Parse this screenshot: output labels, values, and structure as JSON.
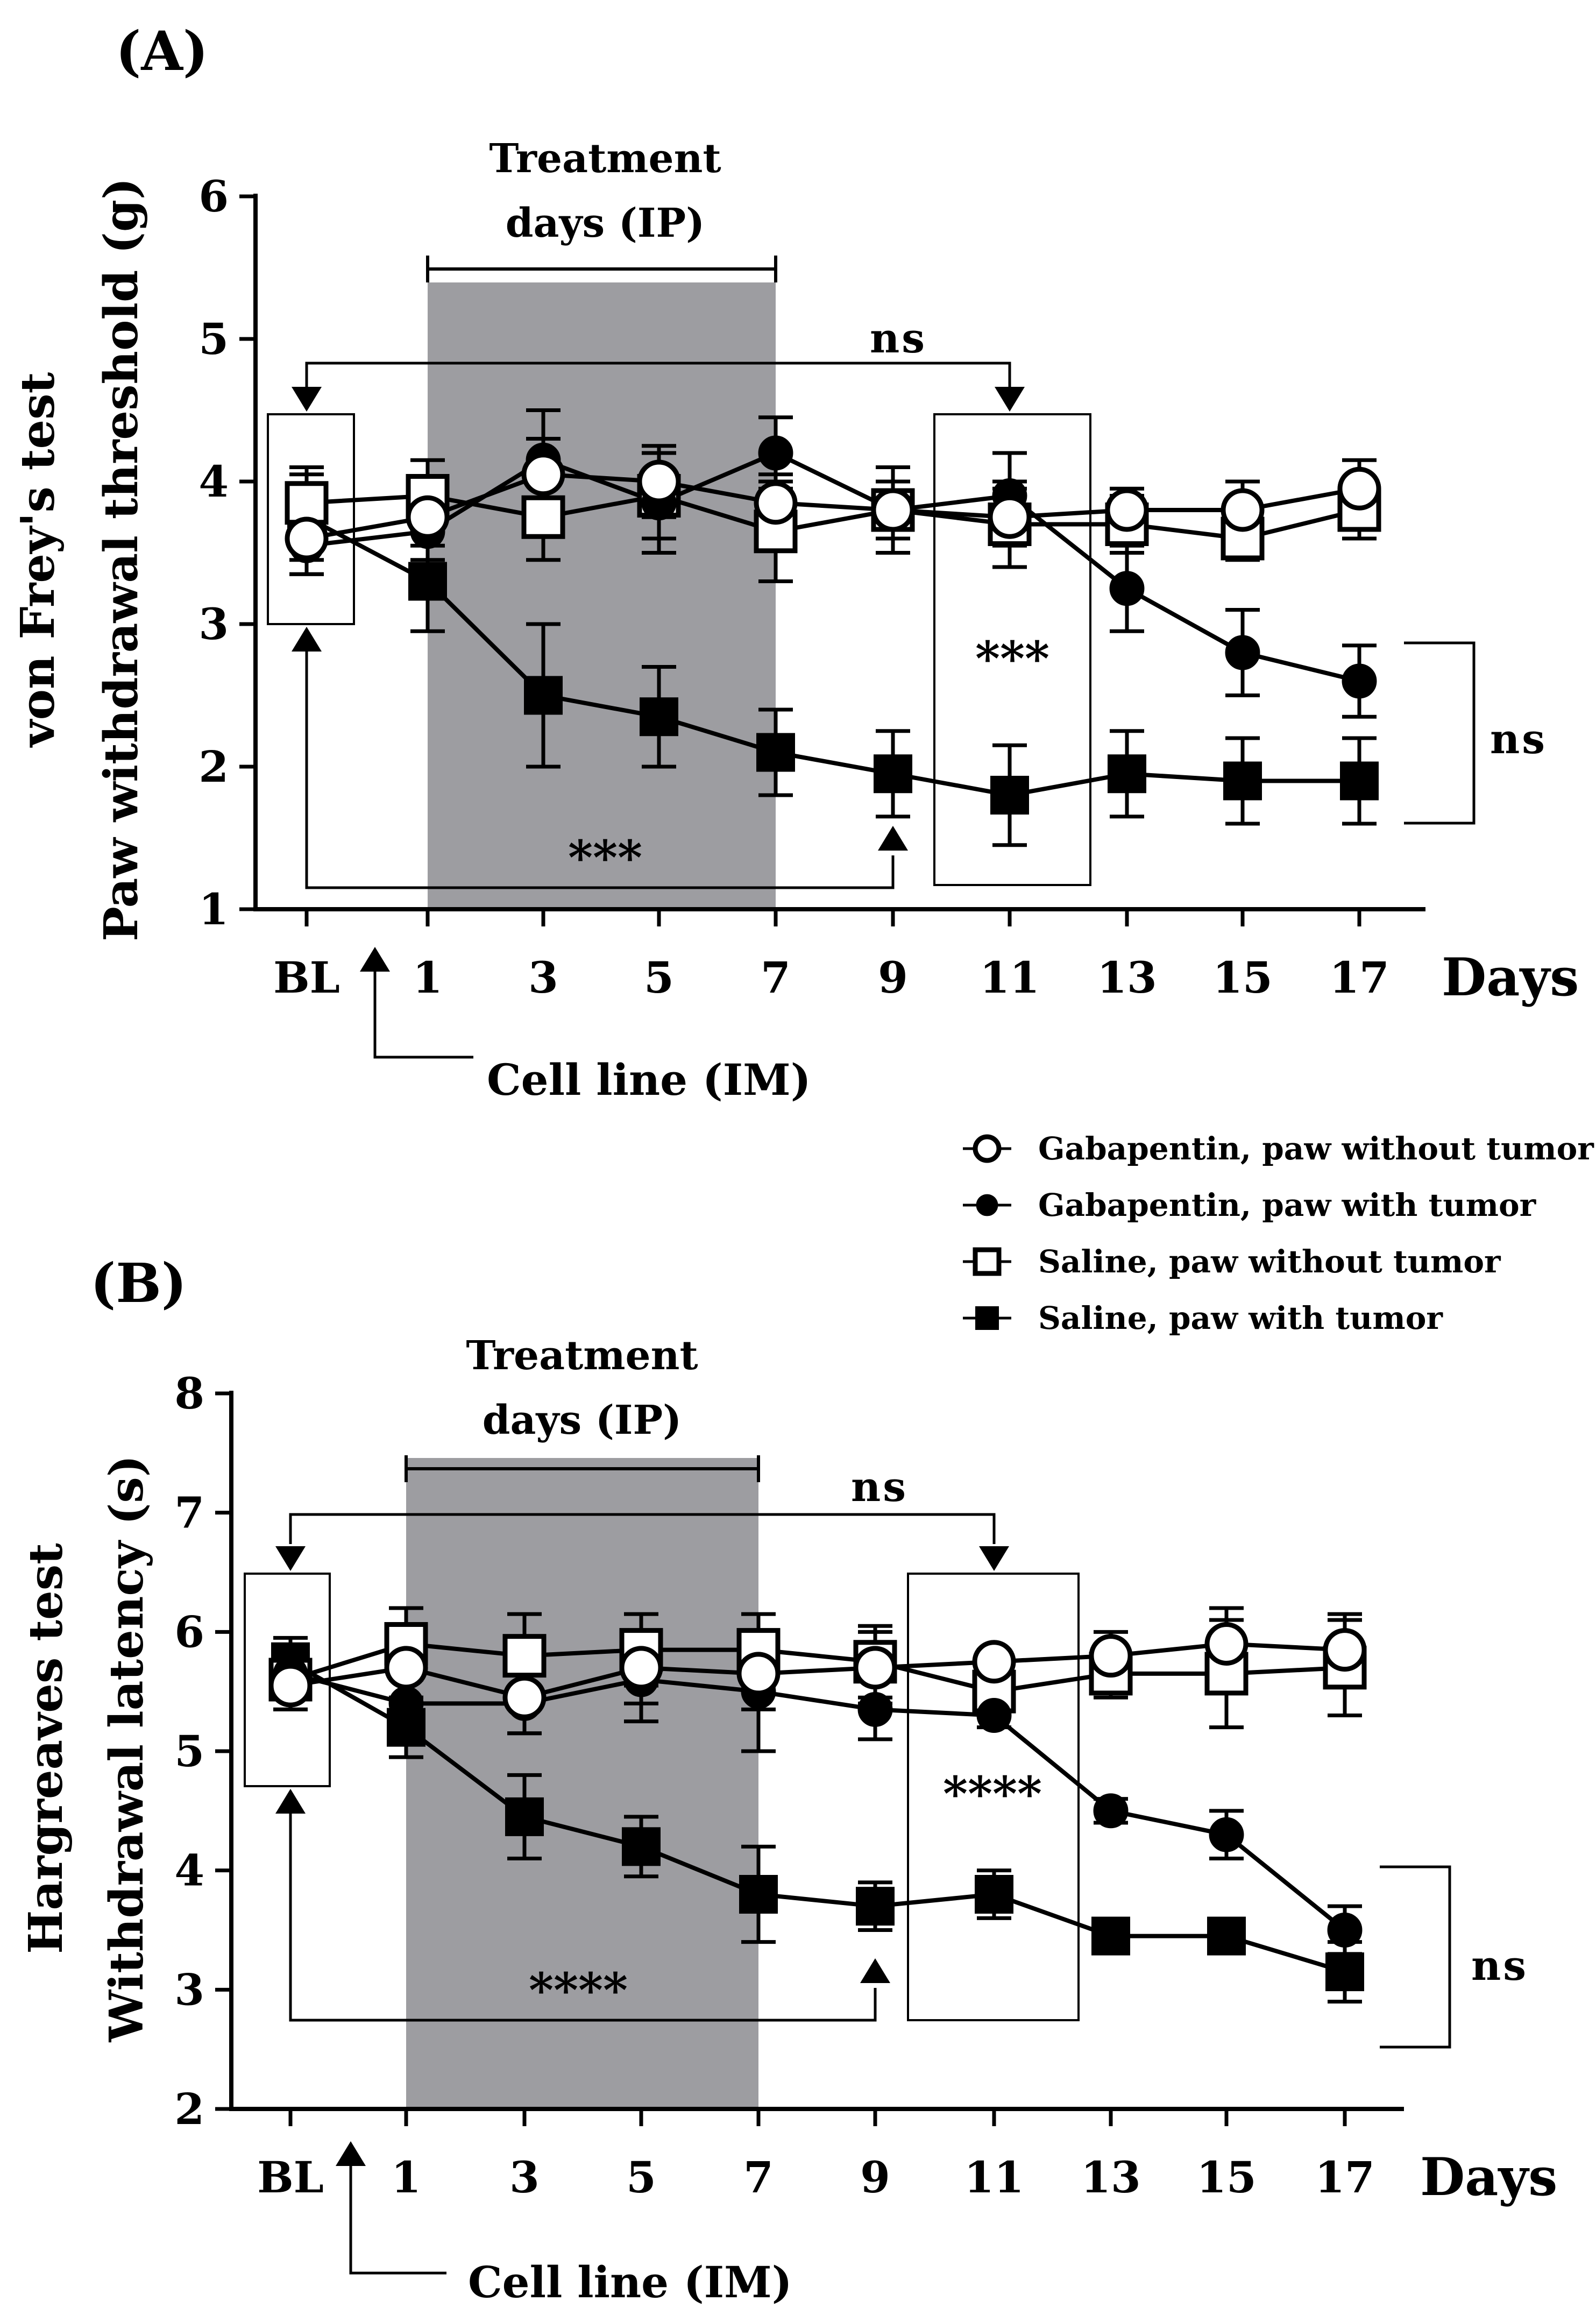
{
  "legend": [
    {
      "name": "Gabapentin, paw without tumor",
      "marker": "circle-open"
    },
    {
      "name": "Gabapentin, paw with tumor",
      "marker": "circle-filled"
    },
    {
      "name": "Saline, paw without tumor",
      "marker": "square-open"
    },
    {
      "name": "Saline, paw with tumor",
      "marker": "square-filled"
    }
  ],
  "chart_data": [
    {
      "type": "line",
      "panel_label": "(A)",
      "ylabel_line1": "von Frey's test",
      "ylabel_line2": "Paw withdrawal threshold (g)",
      "xlabel": "Days",
      "categories": [
        "BL",
        "1",
        "3",
        "5",
        "7",
        "9",
        "11",
        "13",
        "15",
        "17"
      ],
      "ylim": [
        1,
        6
      ],
      "yticks": [
        "1",
        "2",
        "3",
        "4",
        "5",
        "6"
      ],
      "treatment_label_1": "Treatment",
      "treatment_label_2": "days (IP)",
      "treatment_span": [
        "1",
        "7"
      ],
      "cell_line_label": "Cell line (IM)",
      "annotations": {
        "ns_top": "ns",
        "ns_right": "ns",
        "stars_box": "***",
        "stars_bottom": "***"
      },
      "series": [
        {
          "name": "Gabapentin, paw without tumor",
          "values": [
            3.6,
            3.75,
            4.05,
            4.0,
            3.85,
            3.8,
            3.75,
            3.8,
            3.8,
            3.95
          ],
          "errors": [
            0.25,
            0.2,
            0.25,
            0.25,
            0.2,
            0.2,
            0.2,
            0.15,
            0.2,
            0.2
          ]
        },
        {
          "name": "Gabapentin, paw with tumor",
          "values": [
            3.55,
            3.65,
            4.15,
            3.85,
            4.2,
            3.8,
            3.9,
            3.25,
            2.8,
            2.6
          ],
          "errors": [
            0.2,
            0.2,
            0.35,
            0.35,
            0.25,
            0.2,
            0.3,
            0.3,
            0.3,
            0.25
          ]
        },
        {
          "name": "Saline, paw without tumor",
          "values": [
            3.85,
            3.9,
            3.75,
            3.9,
            3.65,
            3.8,
            3.7,
            3.7,
            3.6,
            3.8
          ],
          "errors": [
            0.25,
            0.25,
            0.3,
            0.3,
            0.35,
            0.3,
            0.3,
            0.2,
            0.15,
            0.2
          ]
        },
        {
          "name": "Saline, paw with tumor",
          "values": [
            3.75,
            3.3,
            2.5,
            2.35,
            2.1,
            1.95,
            1.8,
            1.95,
            1.9,
            1.9
          ],
          "errors": [
            0.3,
            0.35,
            0.5,
            0.35,
            0.3,
            0.3,
            0.35,
            0.3,
            0.3,
            0.3
          ]
        }
      ]
    },
    {
      "type": "line",
      "panel_label": "(B)",
      "ylabel_line1": "Hargreaves test",
      "ylabel_line2": "Withdrawal latency (s)",
      "xlabel": "Days",
      "categories": [
        "BL",
        "1",
        "3",
        "5",
        "7",
        "9",
        "11",
        "13",
        "15",
        "17"
      ],
      "ylim": [
        2,
        8
      ],
      "yticks": [
        "2",
        "3",
        "4",
        "5",
        "6",
        "7",
        "8"
      ],
      "treatment_label_1": "Treatment",
      "treatment_label_2": "days (IP)",
      "treatment_span": [
        "1",
        "7"
      ],
      "cell_line_label": "Cell line (IM)",
      "annotations": {
        "ns_top": "ns",
        "ns_right": "ns",
        "stars_box": "****",
        "stars_bottom": "****"
      },
      "series": [
        {
          "name": "Gabapentin, paw without tumor",
          "values": [
            5.55,
            5.7,
            5.45,
            5.7,
            5.65,
            5.7,
            5.75,
            5.8,
            5.9,
            5.85
          ],
          "errors": [
            0.2,
            0.25,
            0.3,
            0.3,
            0.3,
            0.3,
            0.1,
            0.2,
            0.3,
            0.3
          ]
        },
        {
          "name": "Gabapentin, paw with tumor",
          "values": [
            5.65,
            5.4,
            5.4,
            5.6,
            5.5,
            5.35,
            5.3,
            4.5,
            4.3,
            3.5
          ],
          "errors": [
            0.2,
            0.2,
            0.25,
            0.35,
            0.5,
            0.25,
            0.1,
            0.1,
            0.2,
            0.2
          ]
        },
        {
          "name": "Saline, paw without tumor",
          "values": [
            5.6,
            5.9,
            5.8,
            5.85,
            5.85,
            5.75,
            5.5,
            5.65,
            5.65,
            5.7
          ],
          "errors": [
            0.25,
            0.3,
            0.35,
            0.3,
            0.3,
            0.3,
            0.2,
            0.2,
            0.45,
            0.4
          ]
        },
        {
          "name": "Saline, paw with tumor",
          "values": [
            5.75,
            5.2,
            4.45,
            4.2,
            3.8,
            3.7,
            3.8,
            3.45,
            3.45,
            3.15
          ],
          "errors": [
            0.2,
            0.25,
            0.35,
            0.25,
            0.4,
            0.2,
            0.2,
            0.1,
            0.1,
            0.25
          ]
        }
      ]
    }
  ]
}
